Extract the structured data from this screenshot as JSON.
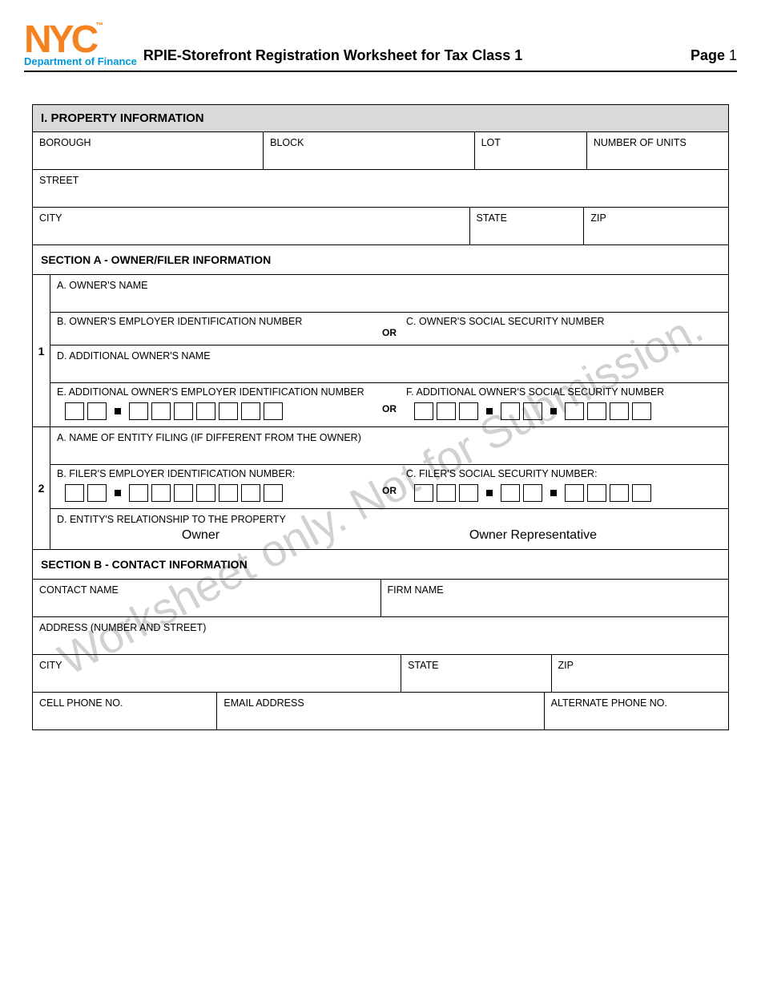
{
  "colors": {
    "logo_orange": "#f58220",
    "logo_blue": "#0099d8",
    "section_bg": "#d9d9d9",
    "border": "#000000",
    "watermark": "rgba(0,0,0,0.18)"
  },
  "header": {
    "logo_top": "NYC",
    "logo_tm": "™",
    "logo_sub": "Department of Finance",
    "title": "RPIE-Storefront Registration Worksheet for Tax Class 1",
    "page_label": "Page",
    "page_num": "1"
  },
  "watermark": "Worksheet only. Not for Submission.",
  "section1": {
    "heading": "I. PROPERTY INFORMATION",
    "row1": {
      "borough": "BOROUGH",
      "block": "BLOCK",
      "lot": "LOT",
      "units": "NUMBER OF UNITS"
    },
    "row2": {
      "street": "STREET"
    },
    "row3": {
      "city": "CITY",
      "state": "STATE",
      "zip": "ZIP"
    }
  },
  "sectionA": {
    "heading": "SECTION A - OWNER/FILER INFORMATION",
    "or": "OR",
    "group1": {
      "index": "1",
      "a": "A. OWNER'S NAME",
      "b": "B. OWNER'S EMPLOYER IDENTIFICATION NUMBER",
      "c": "C. OWNER'S SOCIAL SECURITY NUMBER",
      "d": "D. ADDITIONAL OWNER'S NAME",
      "e": "E. ADDITIONAL OWNER'S EMPLOYER IDENTIFICATION NUMBER",
      "f": "F. ADDITIONAL OWNER'S SOCIAL SECURITY NUMBER"
    },
    "group2": {
      "index": "2",
      "a": "A. NAME OF ENTITY FILING (IF DIFFERENT FROM THE OWNER)",
      "b": "B. FILER'S EMPLOYER IDENTIFICATION NUMBER:",
      "c": "C. FILER'S SOCIAL SECURITY NUMBER:",
      "d": "D. ENTITY'S RELATIONSHIP TO THE PROPERTY",
      "opt1": "Owner",
      "opt2": "Owner Representative"
    }
  },
  "sectionB": {
    "heading": "SECTION B - CONTACT INFORMATION",
    "row1": {
      "contact": "CONTACT NAME",
      "firm": "FIRM NAME"
    },
    "row2": {
      "address": "ADDRESS (NUMBER AND STREET)"
    },
    "row3": {
      "city": "CITY",
      "state": "STATE",
      "zip": "ZIP"
    },
    "row4": {
      "cell": "CELL PHONE NO.",
      "email": "EMAIL ADDRESS",
      "alt": "ALTERNATE PHONE NO."
    }
  },
  "ein_pattern": [
    2,
    "dash",
    7
  ],
  "ssn_pattern": [
    3,
    "dash",
    2,
    "dash",
    4
  ]
}
